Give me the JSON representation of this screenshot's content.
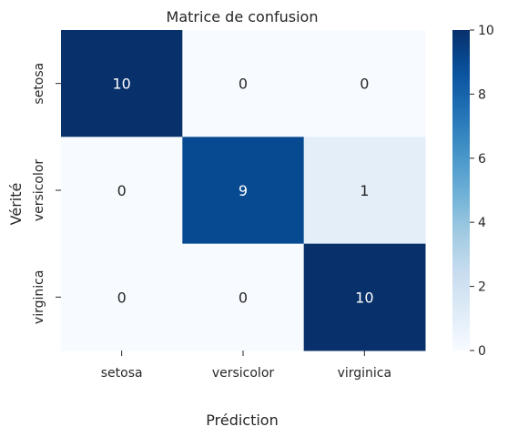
{
  "chart_data": {
    "type": "heatmap",
    "title": "Matrice de confusion",
    "xlabel": "Prédiction",
    "ylabel": "Vérité",
    "x_categories": [
      "setosa",
      "versicolor",
      "virginica"
    ],
    "y_categories": [
      "setosa",
      "versicolor",
      "virginica"
    ],
    "values": [
      [
        10,
        0,
        0
      ],
      [
        0,
        9,
        1
      ],
      [
        0,
        0,
        10
      ]
    ],
    "colorbar": {
      "range": [
        0,
        10
      ],
      "ticks": [
        "0",
        "2",
        "4",
        "6",
        "8",
        "10"
      ],
      "colormap": "Blues"
    },
    "annotated": true,
    "grid": false
  }
}
